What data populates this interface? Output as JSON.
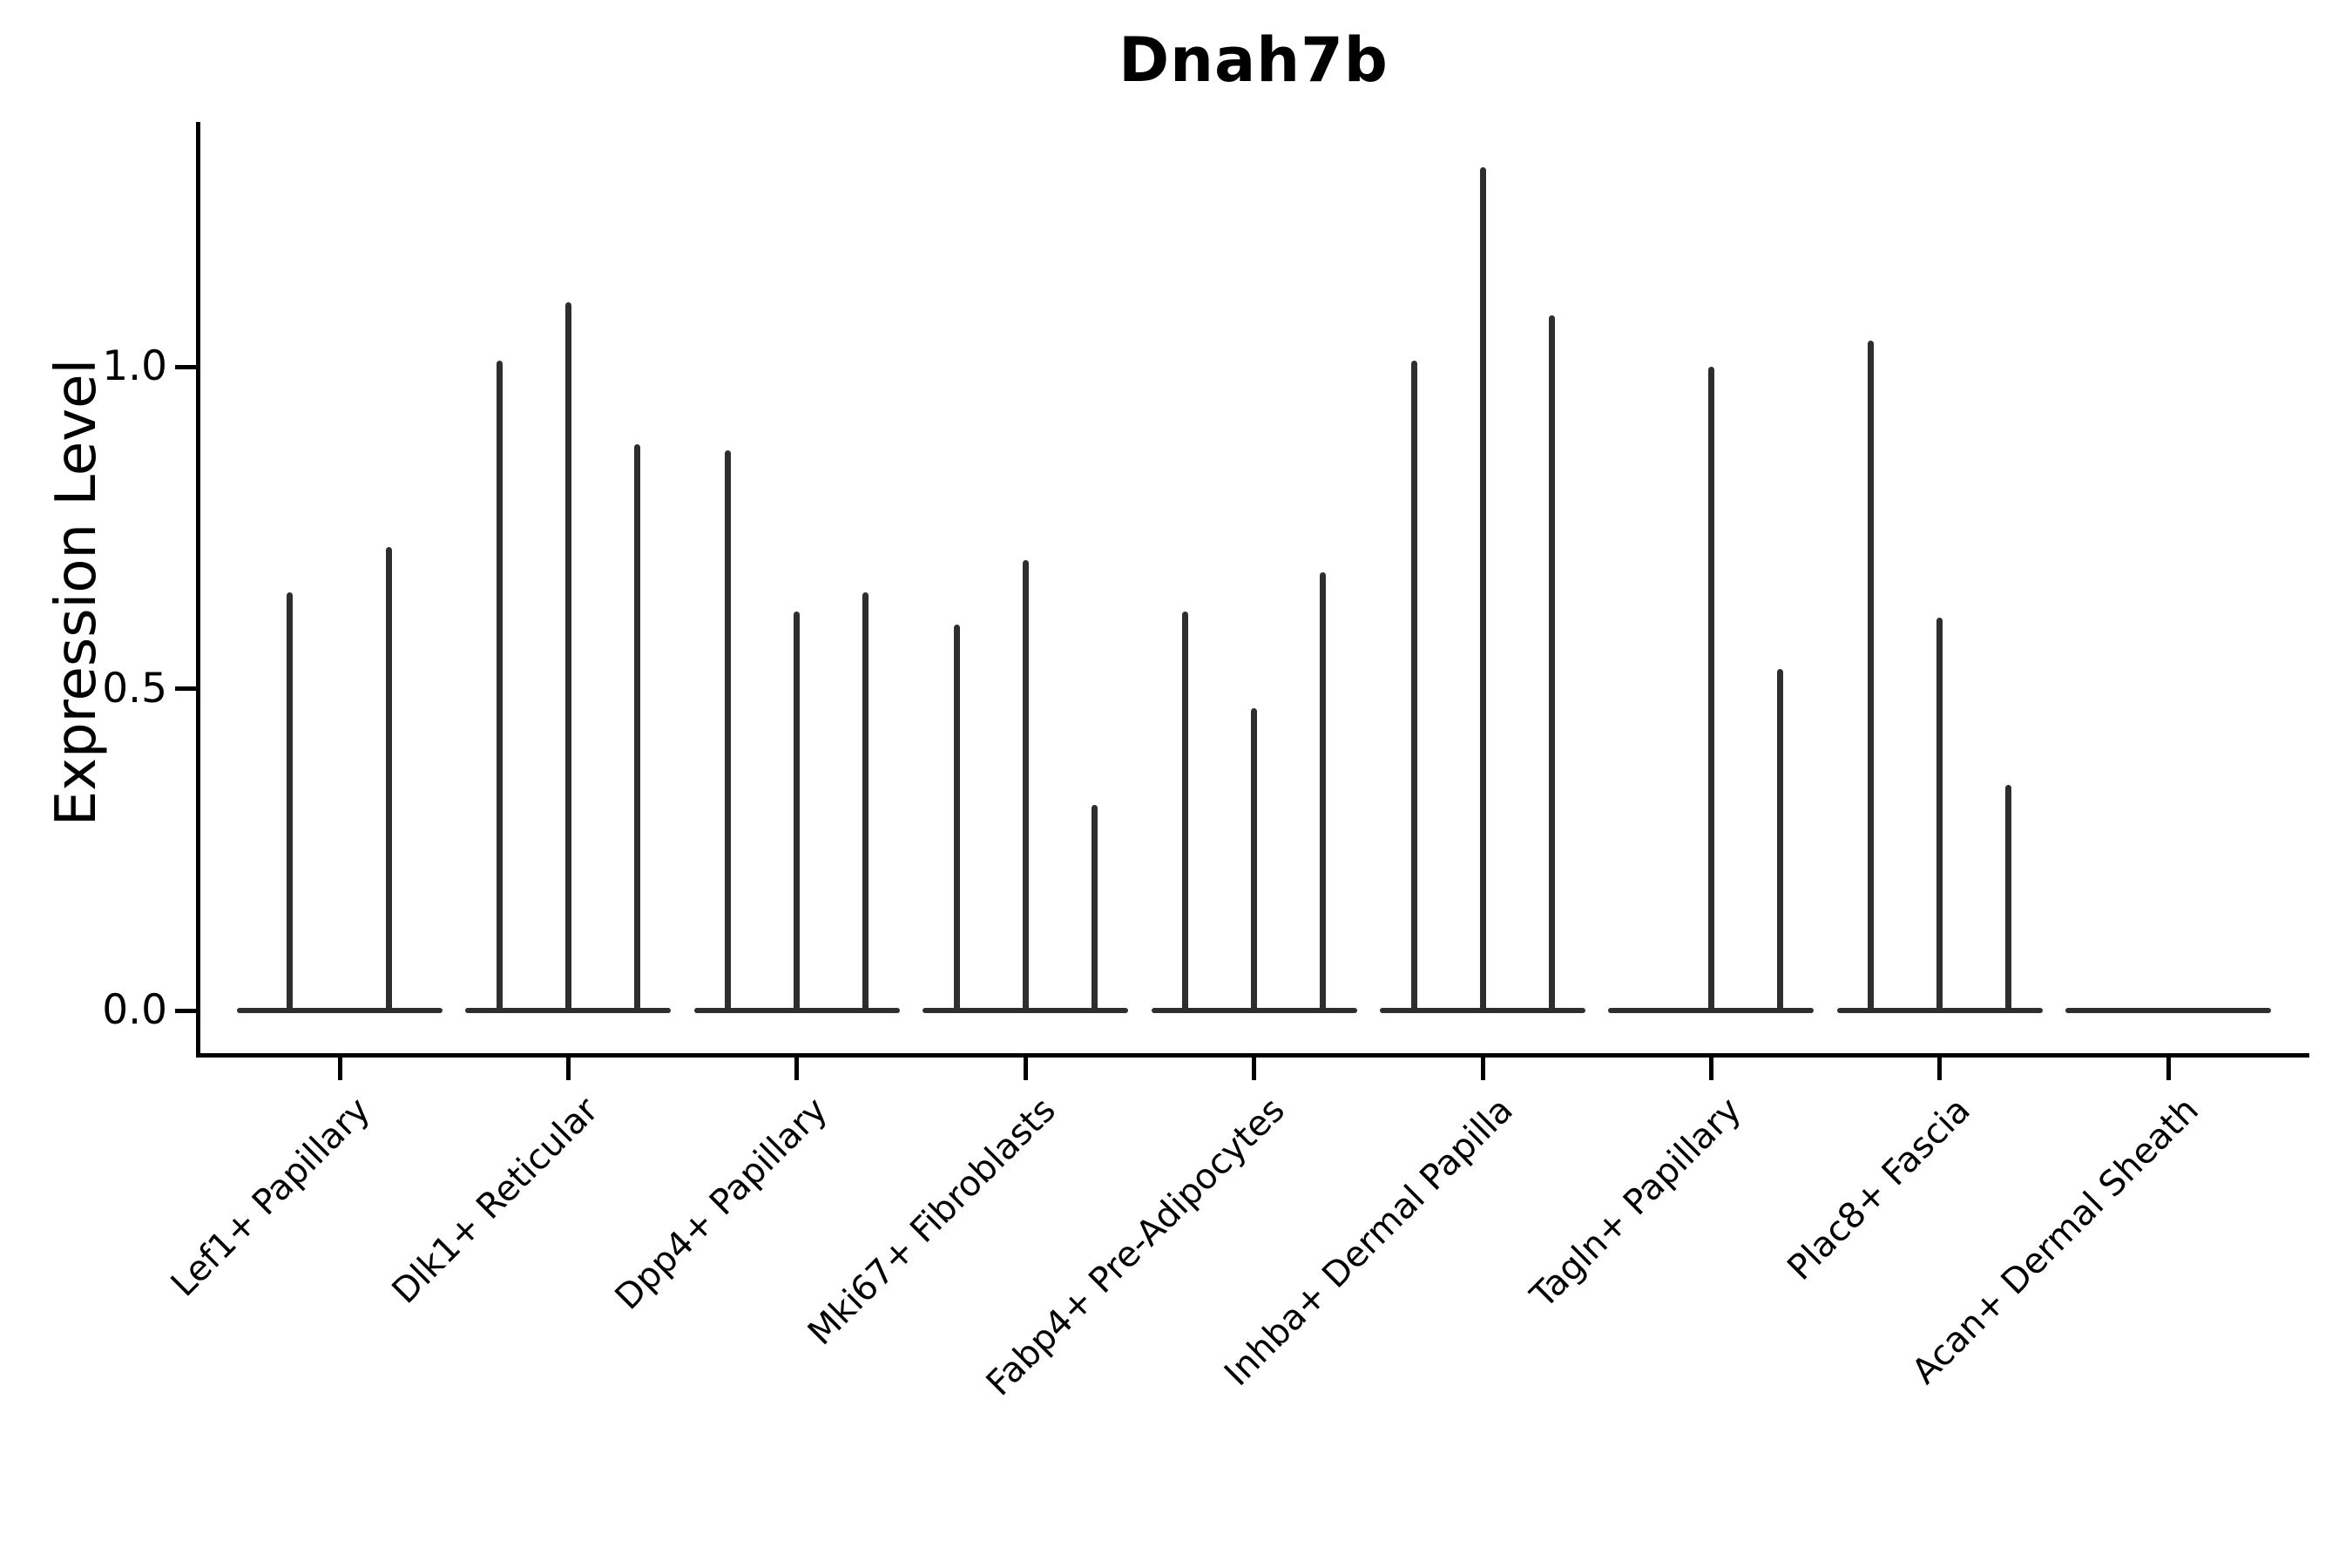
{
  "chart_data": {
    "type": "violin",
    "title": "Dnah7b",
    "xlabel": "",
    "ylabel": "Expression Level",
    "yticks": [
      "0.0",
      "0.5",
      "1.0"
    ],
    "ytick_values": [
      0.0,
      0.5,
      1.0
    ],
    "ylim": [
      -0.07,
      1.38
    ],
    "grid": false,
    "legend": "none",
    "note": "Stacked-violin style plot; each category shows collapsed flat violins at 0 with thin max-expression spikes per sub-group",
    "ink_color": "#2e2e2e",
    "axis_color": "#000000",
    "categories": [
      {
        "label": "Lef1+ Papillary",
        "spikes": [
          {
            "slot": "L2",
            "value": 0.65
          },
          {
            "slot": "R2",
            "value": 0.72
          }
        ]
      },
      {
        "label": "Dlk1+ Reticular",
        "spikes": [
          {
            "slot": "L",
            "value": 1.01
          },
          {
            "slot": "C",
            "value": 1.1
          },
          {
            "slot": "R",
            "value": 0.88
          }
        ]
      },
      {
        "label": "Dpp4+ Papillary",
        "spikes": [
          {
            "slot": "L",
            "value": 0.87
          },
          {
            "slot": "C",
            "value": 0.62
          },
          {
            "slot": "R",
            "value": 0.65
          }
        ]
      },
      {
        "label": "Mki67+ Fibroblasts",
        "spikes": [
          {
            "slot": "L",
            "value": 0.6
          },
          {
            "slot": "C",
            "value": 0.7
          },
          {
            "slot": "R",
            "value": 0.32
          }
        ]
      },
      {
        "label": "Fabp4+ Pre-Adipocytes",
        "spikes": [
          {
            "slot": "L",
            "value": 0.62
          },
          {
            "slot": "C",
            "value": 0.47
          },
          {
            "slot": "R",
            "value": 0.68
          }
        ]
      },
      {
        "label": "Inhba+ Dermal Papilla",
        "spikes": [
          {
            "slot": "L",
            "value": 1.01
          },
          {
            "slot": "C",
            "value": 1.31
          },
          {
            "slot": "R",
            "value": 1.08
          }
        ]
      },
      {
        "label": "Tagln+ Papillary",
        "spikes": [
          {
            "slot": "C",
            "value": 1.0
          },
          {
            "slot": "R",
            "value": 0.53
          }
        ]
      },
      {
        "label": "Plac8+ Fascia",
        "spikes": [
          {
            "slot": "L",
            "value": 1.04
          },
          {
            "slot": "C",
            "value": 0.61
          },
          {
            "slot": "R",
            "value": 0.35
          }
        ]
      },
      {
        "label": "Acan+ Dermal Sheath",
        "spikes": []
      }
    ]
  }
}
